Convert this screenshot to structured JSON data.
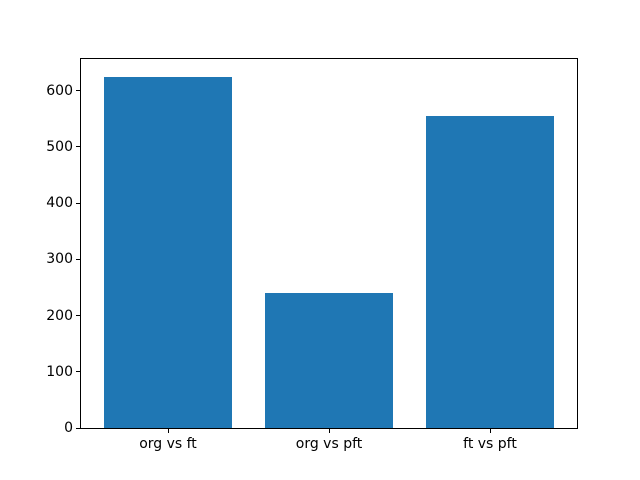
{
  "chart_data": {
    "type": "bar",
    "categories": [
      "org vs ft",
      "org vs pft",
      "ft vs pft"
    ],
    "values": [
      625,
      241,
      555
    ],
    "title": "",
    "xlabel": "",
    "ylabel": "",
    "ylim": [
      0,
      656.25
    ],
    "yticks": [
      0,
      100,
      200,
      300,
      400,
      500,
      600
    ],
    "bar_color": "#1f77b4",
    "background_color": "#ffffff",
    "axis_color": "#000000",
    "grid": false,
    "legend": "none",
    "bar_width_fraction": 0.8,
    "x_edge_margin_units": 0.54
  }
}
